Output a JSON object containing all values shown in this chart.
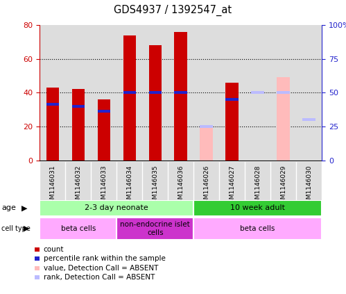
{
  "title": "GDS4937 / 1392547_at",
  "samples": [
    "GSM1146031",
    "GSM1146032",
    "GSM1146033",
    "GSM1146034",
    "GSM1146035",
    "GSM1146036",
    "GSM1146026",
    "GSM1146027",
    "GSM1146028",
    "GSM1146029",
    "GSM1146030"
  ],
  "count_values": [
    43,
    42,
    36,
    74,
    68,
    76,
    0,
    46,
    0,
    0,
    0
  ],
  "rank_values": [
    33,
    32,
    29,
    40,
    40,
    40,
    0,
    36,
    0,
    0,
    0
  ],
  "absent_count": [
    0,
    0,
    0,
    0,
    0,
    0,
    19,
    0,
    0,
    49,
    0
  ],
  "absent_rank": [
    0,
    0,
    0,
    0,
    0,
    0,
    20,
    0,
    40,
    40,
    24
  ],
  "is_absent": [
    false,
    false,
    false,
    false,
    false,
    false,
    true,
    false,
    true,
    true,
    true
  ],
  "ylim_left": [
    0,
    80
  ],
  "ylim_right": [
    0,
    100
  ],
  "yticks_left": [
    0,
    20,
    40,
    60,
    80
  ],
  "yticks_right": [
    0,
    25,
    50,
    75,
    100
  ],
  "color_red": "#cc0000",
  "color_blue": "#2222cc",
  "color_pink": "#ffbbbb",
  "color_lightblue": "#bbbbff",
  "color_bg": "#ffffff",
  "color_bar_bg": "#dddddd",
  "age_groups": [
    {
      "label": "2-3 day neonate",
      "start": 0,
      "end": 6,
      "color": "#aaffaa"
    },
    {
      "label": "10 week adult",
      "start": 6,
      "end": 11,
      "color": "#33cc33"
    }
  ],
  "cell_groups": [
    {
      "label": "beta cells",
      "start": 0,
      "end": 3,
      "color": "#ffaaff"
    },
    {
      "label": "non-endocrine islet\ncells",
      "start": 3,
      "end": 6,
      "color": "#cc33cc"
    },
    {
      "label": "beta cells",
      "start": 6,
      "end": 11,
      "color": "#ffaaff"
    }
  ],
  "legend_items": [
    {
      "color": "#cc0000",
      "label": "count"
    },
    {
      "color": "#2222cc",
      "label": "percentile rank within the sample"
    },
    {
      "color": "#ffbbbb",
      "label": "value, Detection Call = ABSENT"
    },
    {
      "color": "#bbbbff",
      "label": "rank, Detection Call = ABSENT"
    }
  ]
}
